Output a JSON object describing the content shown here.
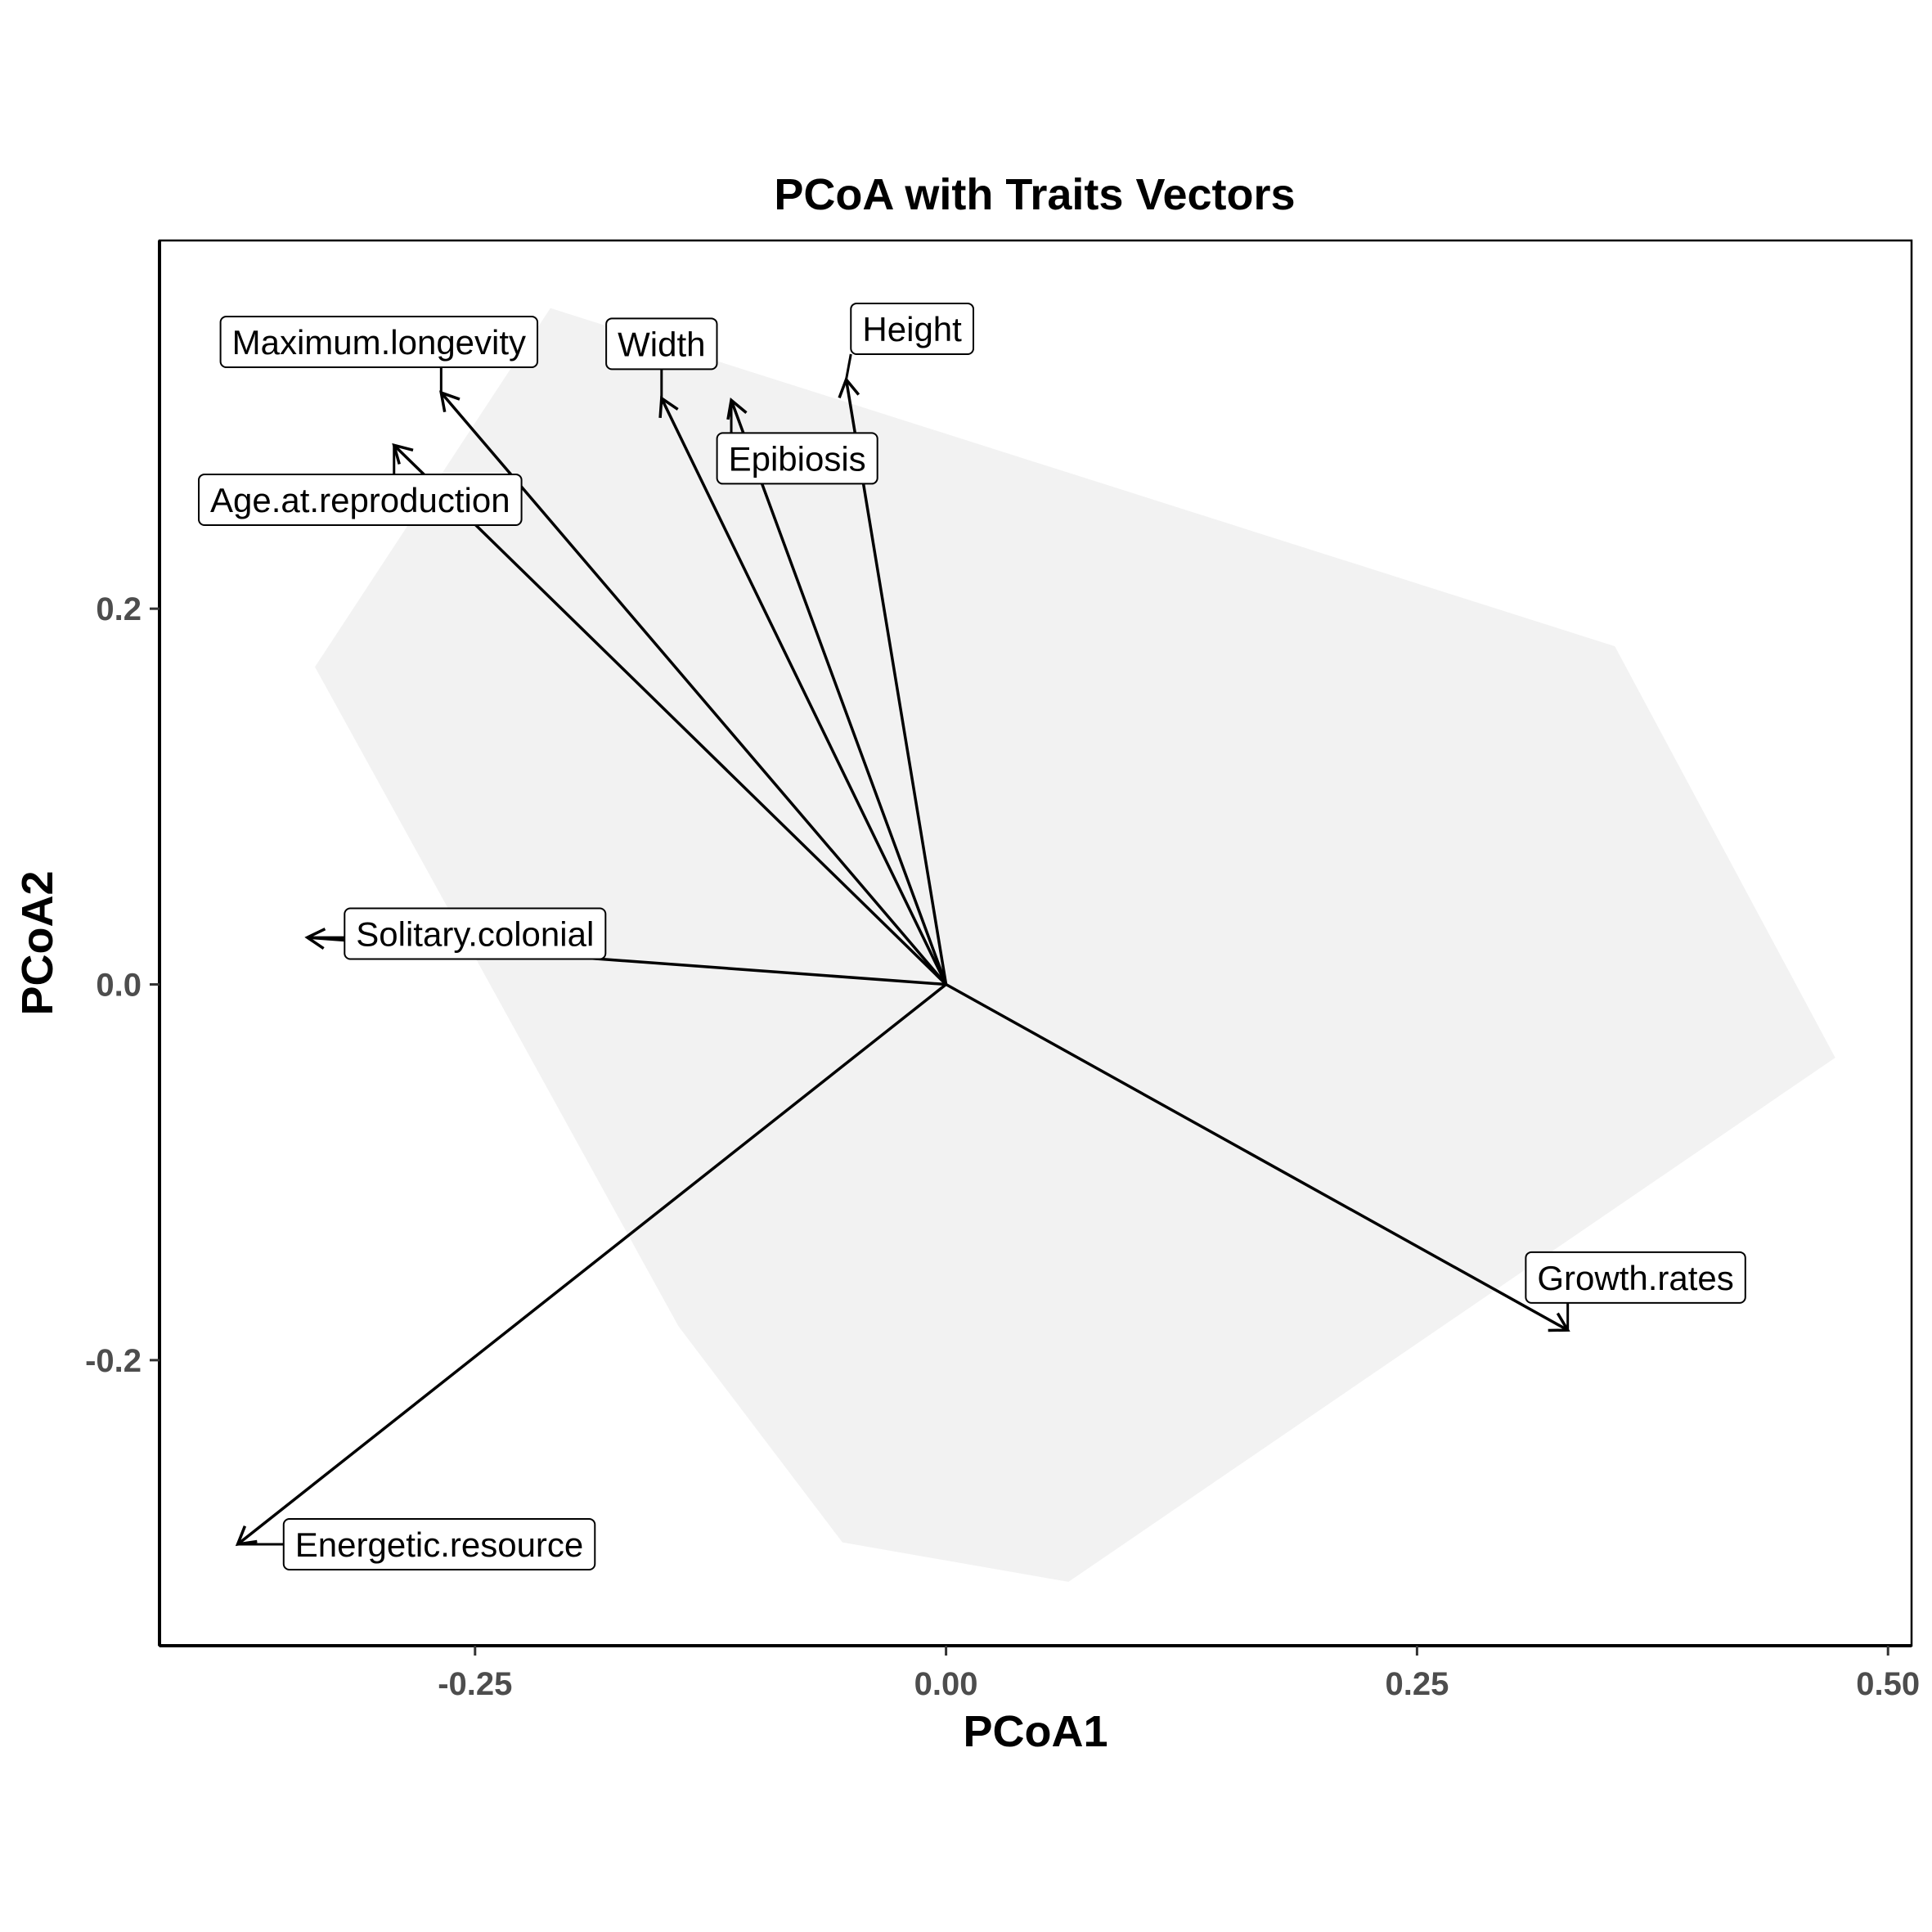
{
  "chart_data": {
    "type": "scatter",
    "title": "PCoA with Traits Vectors",
    "xlabel": "PCoA1",
    "ylabel": "PCoA2",
    "xlim": [
      -0.4175,
      0.5125
    ],
    "ylim": [
      -0.352,
      0.396
    ],
    "x_ticks": [
      {
        "value": -0.25,
        "label": "-0.25"
      },
      {
        "value": 0.0,
        "label": "0.00"
      },
      {
        "value": 0.25,
        "label": "0.25"
      },
      {
        "value": 0.5,
        "label": "0.50"
      }
    ],
    "y_ticks": [
      {
        "value": 0.2,
        "label": "0.2"
      },
      {
        "value": 0.0,
        "label": "0.0"
      },
      {
        "value": -0.2,
        "label": "-0.2"
      }
    ],
    "grid": false,
    "hull_color": "#f2f2f2",
    "arrow_color": "#000000",
    "hull": [
      {
        "x": -0.21,
        "y": 0.36
      },
      {
        "x": 0.355,
        "y": 0.18
      },
      {
        "x": 0.472,
        "y": -0.039
      },
      {
        "x": 0.065,
        "y": -0.318
      },
      {
        "x": -0.055,
        "y": -0.297
      },
      {
        "x": -0.142,
        "y": -0.182
      },
      {
        "x": -0.335,
        "y": 0.169
      }
    ],
    "vectors": [
      {
        "name": "Maximum.longevity",
        "x": -0.268,
        "y": 0.315,
        "lx": -0.301,
        "ly": 0.342
      },
      {
        "name": "Width",
        "x": -0.151,
        "y": 0.312,
        "lx": -0.151,
        "ly": 0.341
      },
      {
        "name": "Height",
        "x": -0.053,
        "y": 0.322,
        "lx": -0.018,
        "ly": 0.349
      },
      {
        "name": "Epibiosis",
        "x": -0.114,
        "y": 0.311,
        "lx": -0.079,
        "ly": 0.28
      },
      {
        "name": "Age.at.reproduction",
        "x": -0.293,
        "y": 0.287,
        "lx": -0.311,
        "ly": 0.258
      },
      {
        "name": "Solitary.colonial",
        "x": -0.339,
        "y": 0.025,
        "lx": -0.25,
        "ly": 0.027
      },
      {
        "name": "Growth.rates",
        "x": 0.33,
        "y": -0.184,
        "lx": 0.366,
        "ly": -0.156
      },
      {
        "name": "Energetic.resource",
        "x": -0.376,
        "y": -0.298,
        "lx": -0.269,
        "ly": -0.298
      }
    ]
  }
}
